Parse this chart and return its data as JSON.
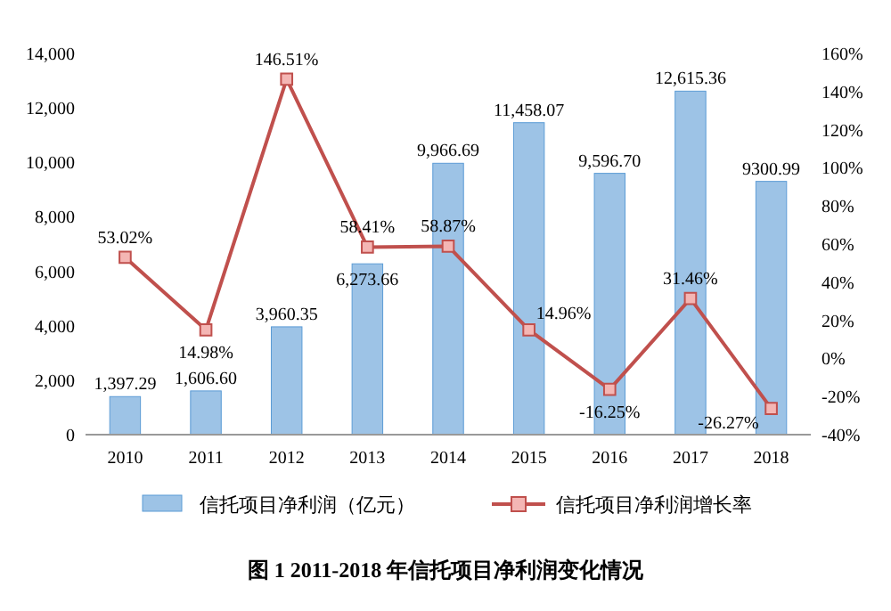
{
  "chart_data": {
    "type": "bar",
    "title": "图 1 2011-2018 年信托项目净利润变化情况",
    "categories": [
      "2010",
      "2011",
      "2012",
      "2013",
      "2014",
      "2015",
      "2016",
      "2017",
      "2018"
    ],
    "series": [
      {
        "name": "信托项目净利润（亿元）",
        "color": "#9dc3e6",
        "values": [
          1397.29,
          1606.6,
          3960.35,
          6273.66,
          9966.69,
          11458.07,
          9596.7,
          12615.36,
          9300.99
        ],
        "value_labels": [
          "1,397.29",
          "1,606.60",
          "3,960.35",
          "6,273.66",
          "9,966.69",
          "11,458.07",
          "9,596.70",
          "12,615.36",
          "9300.99"
        ]
      },
      {
        "name": "信托项目净利润增长率",
        "type": "line",
        "axis": "y2",
        "color": "#c0504d",
        "marker": "square",
        "values": [
          53.02,
          14.98,
          146.51,
          58.41,
          58.87,
          14.96,
          -16.25,
          31.46,
          -26.27
        ],
        "value_labels": [
          "53.02%",
          "14.98%",
          "146.51%",
          "58.41%",
          "58.87%",
          "14.96%",
          "-16.25%",
          "31.46%",
          "-26.27%"
        ]
      }
    ],
    "ylim": [
      0,
      14000
    ],
    "yticks": [
      0,
      {
        "value": 2000,
        "label": "2,000"
      },
      {
        "value": 4000,
        "label": "4,000"
      },
      {
        "value": 6000,
        "label": "6,000"
      },
      {
        "value": 8000,
        "label": "8,000"
      },
      {
        "value": 10000,
        "label": "10,000"
      },
      {
        "value": 12000,
        "label": "12,000"
      },
      {
        "value": 14000,
        "label": "14,000"
      }
    ],
    "y2lim": [
      -40,
      160
    ],
    "y2ticks": [
      {
        "value": -40,
        "label": "-40%"
      },
      {
        "value": -20,
        "label": "-20%"
      },
      {
        "value": 0,
        "label": "0%"
      },
      {
        "value": 20,
        "label": "20%"
      },
      {
        "value": 40,
        "label": "40%"
      },
      {
        "value": 60,
        "label": "60%"
      },
      {
        "value": 80,
        "label": "80%"
      },
      {
        "value": 100,
        "label": "100%"
      },
      {
        "value": 120,
        "label": "120%"
      },
      {
        "value": 140,
        "label": "140%"
      },
      {
        "value": 160,
        "label": "160%"
      }
    ],
    "legend": "bottom"
  }
}
